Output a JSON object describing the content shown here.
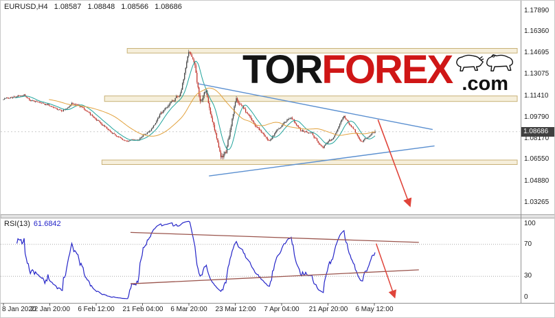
{
  "header": {
    "symbol_period": "EURUSD,H4",
    "open": "1.08587",
    "high": "1.08848",
    "low": "1.08566",
    "close": "1.08686"
  },
  "rsi_header": {
    "name": "RSI(13)",
    "value": "61.6842"
  },
  "logo": {
    "part1": "TOR",
    "part2": "FOREX",
    "suffix": ".com",
    "part1_color": "#141414",
    "part2_color": "#cf1616"
  },
  "price_axis": {
    "labels": [
      "1.17890",
      "1.16360",
      "1.14695",
      "1.13075",
      "1.11410",
      "1.09790",
      "1.08170",
      "1.06550",
      "1.04880",
      "1.03265"
    ],
    "current": "1.08686",
    "badge_color": "#404040"
  },
  "rsi_axis": {
    "labels": [
      "100",
      "70",
      "30",
      "0"
    ]
  },
  "time_axis": {
    "labels": [
      "8 Jan 2020",
      "22 Jan 20:00",
      "6 Feb 12:00",
      "21 Feb 04:00",
      "6 Mar 20:00",
      "23 Mar 12:00",
      "7 Apr 04:00",
      "21 Apr 20:00",
      "6 May 12:00"
    ]
  },
  "chart_data": [
    {
      "type": "candlestick",
      "title": "EURUSD,H4",
      "symbol": "EURUSD",
      "timeframe": "H4",
      "x_tick_labels": [
        "8 Jan 2020",
        "22 Jan 20:00",
        "6 Feb 12:00",
        "21 Feb 04:00",
        "6 Mar 20:00",
        "23 Mar 12:00",
        "7 Apr 04:00",
        "21 Apr 20:00",
        "6 May 12:00"
      ],
      "y_ticks": [
        1.1789,
        1.1636,
        1.14695,
        1.13075,
        1.1141,
        1.0979,
        1.0817,
        1.0655,
        1.0488,
        1.03265
      ],
      "ylim": [
        1.0242,
        1.187
      ],
      "grid": false,
      "current_price": 1.08686,
      "last_candle": {
        "open": 1.08587,
        "high": 1.08848,
        "low": 1.08566,
        "close": 1.08686
      },
      "price_anchors": [
        [
          0,
          1.1118,
          0.001
        ],
        [
          0.055,
          1.115,
          0.0009
        ],
        [
          0.08,
          1.1098,
          0.0009
        ],
        [
          0.12,
          1.1075,
          0.0009
        ],
        [
          0.155,
          1.102,
          0.0009
        ],
        [
          0.185,
          1.109,
          0.001
        ],
        [
          0.21,
          1.1055,
          0.0009
        ],
        [
          0.25,
          1.096,
          0.0009
        ],
        [
          0.29,
          1.0865,
          0.0008
        ],
        [
          0.33,
          1.079,
          0.0008
        ],
        [
          0.36,
          1.0805,
          0.0009
        ],
        [
          0.395,
          1.088,
          0.0011
        ],
        [
          0.42,
          1.099,
          0.0013
        ],
        [
          0.455,
          1.111,
          0.0015
        ],
        [
          0.475,
          1.114,
          0.0014
        ],
        [
          0.5,
          1.148,
          0.002
        ],
        [
          0.515,
          1.135,
          0.0022
        ],
        [
          0.53,
          1.107,
          0.0026
        ],
        [
          0.545,
          1.118,
          0.0026
        ],
        [
          0.565,
          1.09,
          0.0026
        ],
        [
          0.585,
          1.066,
          0.0024
        ],
        [
          0.6,
          1.072,
          0.0022
        ],
        [
          0.625,
          1.112,
          0.002
        ],
        [
          0.65,
          1.103,
          0.0016
        ],
        [
          0.68,
          1.091,
          0.0013
        ],
        [
          0.715,
          1.08,
          0.0012
        ],
        [
          0.75,
          1.093,
          0.0011
        ],
        [
          0.775,
          1.0975,
          0.0011
        ],
        [
          0.8,
          1.088,
          0.0011
        ],
        [
          0.83,
          1.085,
          0.001
        ],
        [
          0.86,
          1.0745,
          0.001
        ],
        [
          0.89,
          1.083,
          0.001
        ],
        [
          0.915,
          1.099,
          0.0011
        ],
        [
          0.94,
          1.09,
          0.001
        ],
        [
          0.965,
          1.0785,
          0.001
        ],
        [
          0.985,
          1.0835,
          0.0009
        ],
        [
          1,
          1.0869,
          0.0009
        ]
      ],
      "bands": [
        {
          "name": "resistance-zone-upper",
          "top": 1.1505,
          "bottom": 1.147,
          "t_start": 0.333
        },
        {
          "name": "resistance-zone-mid",
          "top": 1.1142,
          "bottom": 1.11,
          "t_start": 0.272
        },
        {
          "name": "support-zone-lower",
          "top": 1.0652,
          "bottom": 1.0618,
          "t_start": 0.265
        }
      ],
      "band_fill": "#f6efdb",
      "band_border": "#c8b177",
      "trendlines": [
        {
          "name": "descending-resistance",
          "t1": 0.525,
          "p1": 1.1235,
          "t2": 1.155,
          "p2": 1.0885
        },
        {
          "name": "ascending-support",
          "t1": 0.553,
          "p1": 1.053,
          "t2": 1.16,
          "p2": 1.076
        }
      ],
      "trendline_color": "#5a8fd0",
      "forecast_arrow": {
        "t1": 1.008,
        "p1": 1.096,
        "t2": 1.093,
        "p2": 1.031
      },
      "arrow_color": "#e0443a",
      "moving_averages": [
        {
          "period": 12,
          "color": "#1fa39b"
        },
        {
          "period": 45,
          "color": "#e2a13c"
        }
      ],
      "candles": {
        "count": 360,
        "seed": 11,
        "up_color": "#3f3f3f",
        "down_color": "#c03028"
      }
    },
    {
      "type": "line",
      "name": "RSI(13)",
      "period": 13,
      "current_value": 61.6842,
      "ylim": [
        0,
        100
      ],
      "levels": [
        70,
        30
      ],
      "y_tick_labels": [
        100,
        70,
        30,
        0
      ],
      "color": "#2424c8",
      "trendlines": [
        {
          "name": "rsi-descending-resistance",
          "t1": 0.342,
          "r1": 85,
          "t2": 1.118,
          "r2": 72.5
        },
        {
          "name": "rsi-ascending-support",
          "t1": 0.342,
          "r1": 20.5,
          "t2": 1.118,
          "r2": 38
        }
      ],
      "trendline_color": "#9a544c",
      "forecast_arrow": {
        "t1": 1.003,
        "r1": 71,
        "t2": 1.052,
        "r2": 5
      },
      "arrow_color": "#e0443a"
    }
  ]
}
